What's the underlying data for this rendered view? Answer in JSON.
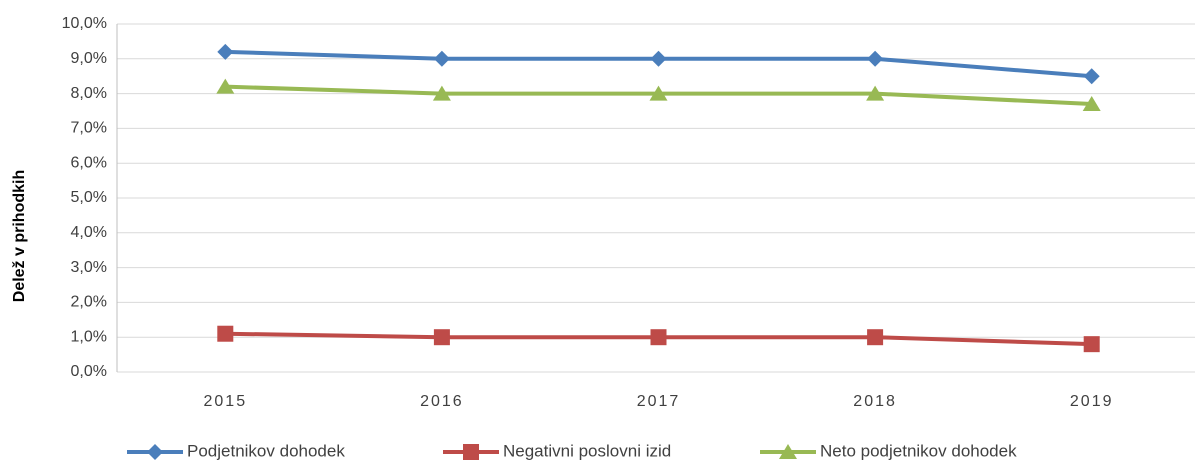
{
  "chart_data": {
    "type": "line",
    "y_label": "Delež v prihodkih",
    "categories": [
      "2015",
      "2016",
      "2017",
      "2018",
      "2019"
    ],
    "series": [
      {
        "name": "Podjetnikov dohodek",
        "color": "#4a7ebb",
        "marker": "diamond",
        "values": [
          9.2,
          9.0,
          9.0,
          9.0,
          8.5
        ]
      },
      {
        "name": "Negativni poslovni izid",
        "color": "#be4b48",
        "marker": "square",
        "values": [
          1.1,
          1.0,
          1.0,
          1.0,
          0.8
        ]
      },
      {
        "name": "Neto podjetnikov dohodek",
        "color": "#98b954",
        "marker": "triangle",
        "values": [
          8.2,
          8.0,
          8.0,
          8.0,
          7.7
        ]
      }
    ],
    "ylim": [
      0,
      10
    ],
    "yticks": [
      {
        "value": 0,
        "label": "0,0%"
      },
      {
        "value": 1,
        "label": "1,0%"
      },
      {
        "value": 2,
        "label": "2,0%"
      },
      {
        "value": 3,
        "label": "3,0%"
      },
      {
        "value": 4,
        "label": "4,0%"
      },
      {
        "value": 5,
        "label": "5,0%"
      },
      {
        "value": 6,
        "label": "6,0%"
      },
      {
        "value": 7,
        "label": "7,0%"
      },
      {
        "value": 8,
        "label": "8,0%"
      },
      {
        "value": 9,
        "label": "9,0%"
      },
      {
        "value": 10,
        "label": "10,0%"
      }
    ],
    "grid": true,
    "legend": "bottom"
  }
}
